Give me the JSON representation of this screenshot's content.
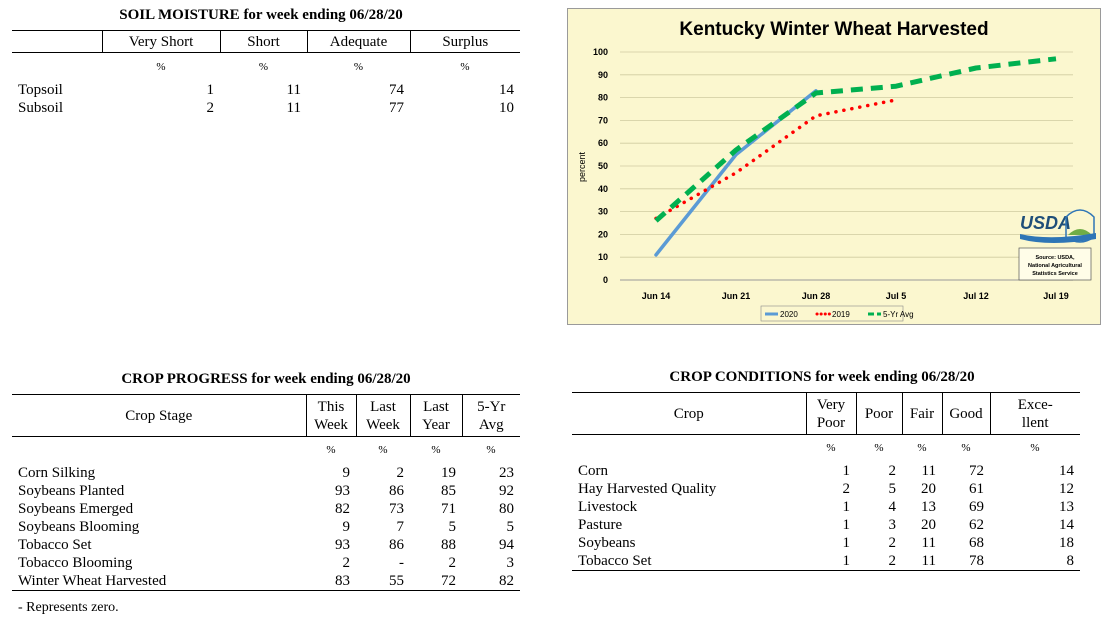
{
  "soil_moisture": {
    "title": "SOIL MOISTURE for week ending 06/28/20",
    "columns": [
      "Very Short",
      "Short",
      "Adequate",
      "Surplus"
    ],
    "unit": "%",
    "rows": [
      {
        "label": "Topsoil",
        "values": [
          "1",
          "11",
          "74",
          "14"
        ]
      },
      {
        "label": "Subsoil",
        "values": [
          "2",
          "11",
          "77",
          "10"
        ]
      }
    ]
  },
  "crop_progress": {
    "title": "CROP PROGRESS for week ending 06/28/20",
    "stage_header": "Crop Stage",
    "columns": [
      {
        "line1": "This",
        "line2": "Week"
      },
      {
        "line1": "Last",
        "line2": "Week"
      },
      {
        "line1": "Last",
        "line2": "Year"
      },
      {
        "line1": "5-Yr",
        "line2": "Avg"
      }
    ],
    "unit": "%",
    "rows": [
      {
        "label": "Corn Silking",
        "values": [
          "9",
          "2",
          "19",
          "23"
        ]
      },
      {
        "label": "Soybeans Planted",
        "values": [
          "93",
          "86",
          "85",
          "92"
        ]
      },
      {
        "label": "Soybeans Emerged",
        "values": [
          "82",
          "73",
          "71",
          "80"
        ]
      },
      {
        "label": "Soybeans Blooming",
        "values": [
          "9",
          "7",
          "5",
          "5"
        ]
      },
      {
        "label": "Tobacco Set",
        "values": [
          "93",
          "86",
          "88",
          "94"
        ]
      },
      {
        "label": "Tobacco Blooming",
        "values": [
          "2",
          "-",
          "2",
          "3"
        ]
      },
      {
        "label": "Winter Wheat Harvested",
        "values": [
          "83",
          "55",
          "72",
          "82"
        ]
      }
    ],
    "footnote": "- Represents zero."
  },
  "crop_conditions": {
    "title": "CROP CONDITIONS for week ending 06/28/20",
    "crop_header": "Crop",
    "columns": [
      {
        "line1": "Very",
        "line2": "Poor"
      },
      {
        "line1": "Poor",
        "line2": ""
      },
      {
        "line1": "Fair",
        "line2": ""
      },
      {
        "line1": "Good",
        "line2": ""
      },
      {
        "line1": "Exce-",
        "line2": "llent"
      }
    ],
    "unit": "%",
    "rows": [
      {
        "label": "Corn",
        "values": [
          "1",
          "2",
          "11",
          "72",
          "14"
        ]
      },
      {
        "label": "Hay Harvested Quality",
        "values": [
          "2",
          "5",
          "20",
          "61",
          "12"
        ]
      },
      {
        "label": "Livestock",
        "values": [
          "1",
          "4",
          "13",
          "69",
          "13"
        ]
      },
      {
        "label": "Pasture",
        "values": [
          "1",
          "3",
          "20",
          "62",
          "14"
        ]
      },
      {
        "label": "Soybeans",
        "values": [
          "1",
          "2",
          "11",
          "68",
          "18"
        ]
      },
      {
        "label": "Tobacco Set",
        "values": [
          "1",
          "2",
          "11",
          "78",
          "8"
        ]
      }
    ]
  },
  "chart": {
    "logo_text": "USDA",
    "source_text": [
      "Source: USDA,",
      "National Agricultural",
      "Statistics Service"
    ]
  },
  "chart_data": {
    "type": "line",
    "title": "Kentucky Winter Wheat Harvested",
    "ylabel": "percent",
    "xlabel": "",
    "ylim": [
      0,
      100
    ],
    "yticks": [
      0,
      10,
      20,
      30,
      40,
      50,
      60,
      70,
      80,
      90,
      100
    ],
    "x_ticks": [
      "Jun 14",
      "Jun 21",
      "Jun 28",
      "Jul 5",
      "Jul 12",
      "Jul 19"
    ],
    "legend_position": "bottom",
    "series": [
      {
        "name": "2020",
        "color": "#5b9bd5",
        "style": "solid",
        "points": [
          [
            "Jun 14",
            11
          ],
          [
            "Jun 21",
            55
          ],
          [
            "Jun 28",
            83
          ]
        ]
      },
      {
        "name": "2019",
        "color": "#ff0000",
        "style": "dotted",
        "points": [
          [
            "Jun 14",
            27
          ],
          [
            "Jun 21",
            47
          ],
          [
            "Jun 28",
            72
          ],
          [
            "Jul 5",
            79
          ]
        ]
      },
      {
        "name": "5-Yr Avg",
        "color": "#00b050",
        "style": "dashed",
        "points": [
          [
            "Jun 14",
            26
          ],
          [
            "Jun 21",
            57
          ],
          [
            "Jun 28",
            82
          ],
          [
            "Jul 5",
            85
          ],
          [
            "Jul 12",
            93
          ],
          [
            "Jul 19",
            97
          ]
        ]
      }
    ]
  }
}
